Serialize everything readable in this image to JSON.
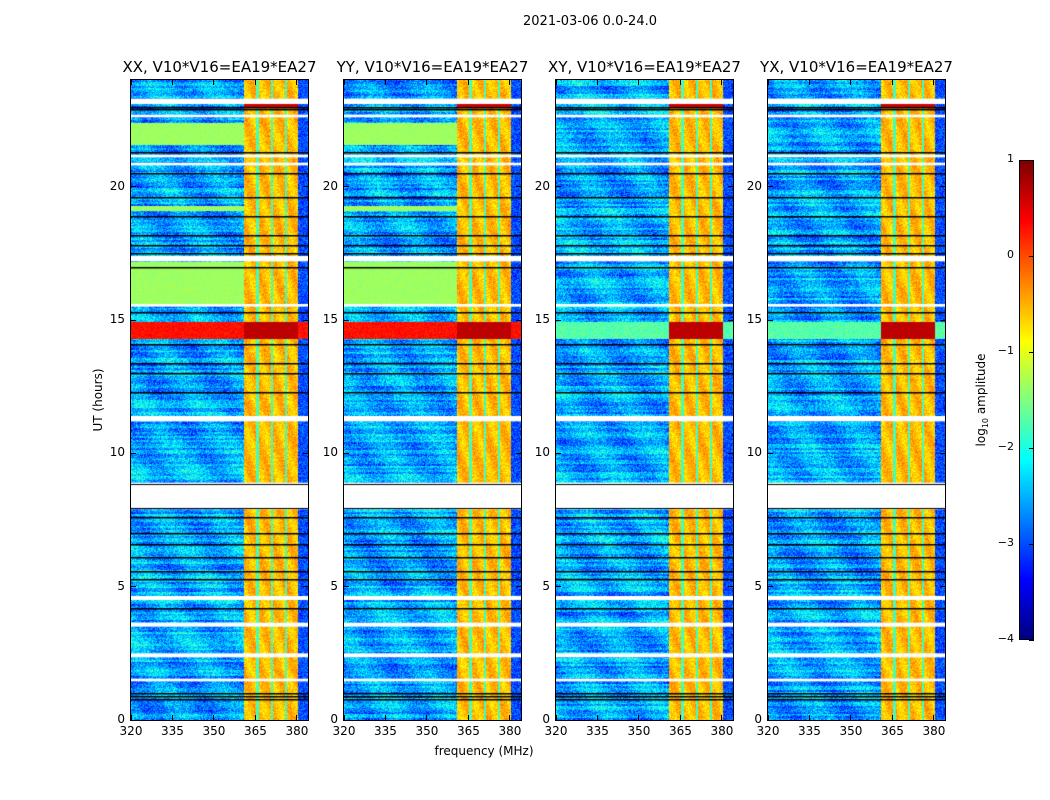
{
  "chart_data": {
    "type": "heatmap",
    "suptitle": "2021-03-06 0.0-24.0",
    "xlabel": "frequency (MHz)",
    "ylabel": "UT (hours)",
    "xlim": [
      320,
      384
    ],
    "ylim": [
      0,
      24
    ],
    "xticks": [
      320,
      335,
      350,
      365,
      380
    ],
    "yticks": [
      0,
      5,
      10,
      15,
      20
    ],
    "panels": [
      {
        "title": "XX, V10*V16=EA19*EA27",
        "pol": "XX"
      },
      {
        "title": "YY, V10*V16=EA19*EA27",
        "pol": "YY"
      },
      {
        "title": "XY, V10*V16=EA19*EA27",
        "pol": "XY"
      },
      {
        "title": "YX, V10*V16=EA19*EA27",
        "pol": "YX"
      }
    ],
    "colorbar": {
      "label_main": "log",
      "label_sub": "10",
      "label_rest": " amplitude",
      "range": [
        -4,
        1
      ],
      "ticks": [
        1,
        0,
        -1,
        -2,
        -3,
        -4
      ],
      "colormap": "jet"
    },
    "bright_band_mhz": [
      360.5,
      380.2
    ],
    "band_gaps_mhz": [
      365.6,
      370.8,
      375.9
    ],
    "flagged_time_ranges_hours": [
      [
        23.1,
        23.3
      ],
      [
        22.6,
        22.7
      ],
      [
        21.1,
        21.2
      ],
      [
        20.8,
        20.9
      ],
      [
        17.2,
        17.4
      ],
      [
        15.5,
        15.6
      ],
      [
        11.2,
        11.4
      ],
      [
        7.9,
        8.9
      ],
      [
        4.5,
        4.65
      ],
      [
        3.5,
        3.65
      ],
      [
        2.35,
        2.5
      ],
      [
        1.45,
        1.55
      ]
    ],
    "rfi_time_ranges_hours": [
      [
        14.3,
        14.95
      ]
    ],
    "green_time_ranges_hours": [
      [
        15.6,
        17.2
      ],
      [
        21.6,
        22.4
      ],
      [
        19.1,
        19.3
      ]
    ]
  }
}
